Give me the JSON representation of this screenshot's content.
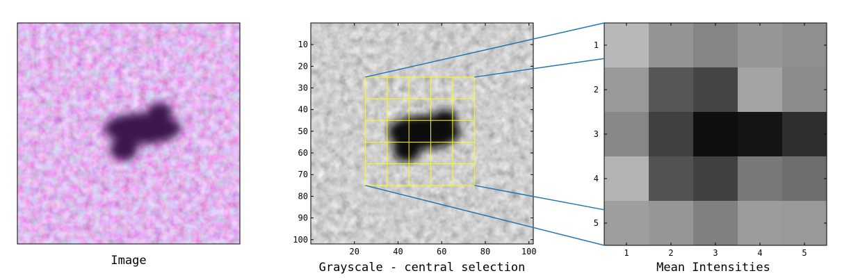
{
  "titles": {
    "image": "Image",
    "grayscale": "Grayscale - central selection",
    "mean": "Mean Intensities"
  },
  "colors": {
    "pink_base": "#d25a8c",
    "pink_light": "#f0b4d2",
    "dark_spot": "#3c1450",
    "selection_grid": "#ffff00",
    "connector": "#1f77b4"
  },
  "chart_data": [
    {
      "type": "image",
      "title": "Image",
      "grid": false
    },
    {
      "type": "image",
      "title": "Grayscale - central selection",
      "x_ticks": [
        20,
        40,
        60,
        80,
        100
      ],
      "y_ticks": [
        10,
        20,
        30,
        40,
        50,
        60,
        70,
        80,
        90,
        100
      ],
      "xlim": [
        0,
        102
      ],
      "ylim": [
        0,
        102
      ],
      "selection": {
        "x_range": [
          25,
          75
        ],
        "y_range": [
          25,
          75
        ],
        "divisions": 5
      },
      "grid": false
    },
    {
      "type": "heatmap",
      "title": "Mean Intensities",
      "colormap": "gray",
      "x_ticks": [
        1,
        2,
        3,
        4,
        5
      ],
      "y_ticks": [
        1,
        2,
        3,
        4,
        5
      ],
      "values": [
        [
          0.72,
          0.58,
          0.52,
          0.59,
          0.56
        ],
        [
          0.6,
          0.34,
          0.27,
          0.64,
          0.55
        ],
        [
          0.53,
          0.25,
          0.06,
          0.08,
          0.18
        ],
        [
          0.7,
          0.32,
          0.25,
          0.47,
          0.43
        ],
        [
          0.62,
          0.59,
          0.5,
          0.61,
          0.6
        ]
      ]
    }
  ]
}
